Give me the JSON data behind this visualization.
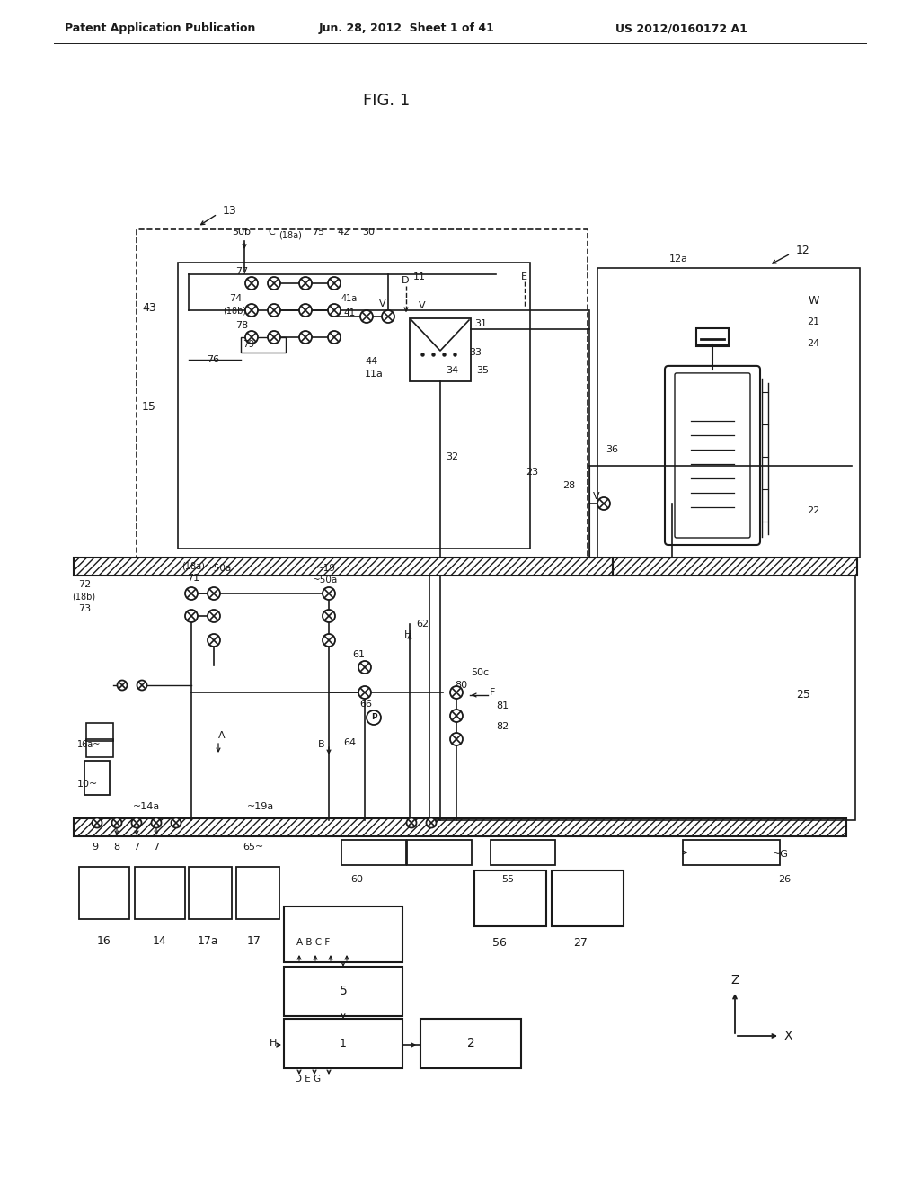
{
  "bg_color": "#ffffff",
  "line_color": "#1a1a1a",
  "header_left": "Patent Application Publication",
  "header_center": "Jun. 28, 2012  Sheet 1 of 41",
  "header_right": "US 2012/0160172 A1",
  "fig_label": "FIG. 1"
}
